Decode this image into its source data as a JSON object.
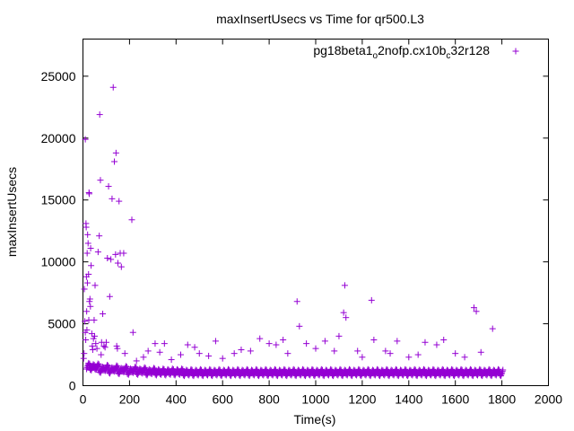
{
  "chart_data": {
    "type": "scatter",
    "title": "maxInsertUsecs vs Time for qr500.L3",
    "xlabel": "Time(s)",
    "ylabel": "maxInsertUsecs",
    "xlim": [
      0,
      2000
    ],
    "ylim": [
      0,
      28000
    ],
    "xticks": [
      0,
      200,
      400,
      600,
      800,
      1000,
      1200,
      1400,
      1600,
      1800,
      2000
    ],
    "yticks": [
      0,
      5000,
      10000,
      15000,
      20000,
      25000
    ],
    "legend": {
      "placement": "top-right",
      "label_main": "pg18beta1",
      "label_sub1": "o",
      "label_mid": "2nofp.cx10b",
      "label_sub2": "c",
      "label_tail": "32r128"
    },
    "grid": false,
    "marker": "+",
    "series": [
      {
        "name": "pg18beta1_o2nofp.cx10b_c32r128",
        "color": "#9400d3",
        "points": [
          [
            3,
            2200
          ],
          [
            5,
            2600
          ],
          [
            6,
            7800
          ],
          [
            8,
            5200
          ],
          [
            10,
            4300
          ],
          [
            10,
            19900
          ],
          [
            12,
            3700
          ],
          [
            13,
            13100
          ],
          [
            14,
            12800
          ],
          [
            15,
            8800
          ],
          [
            16,
            6000
          ],
          [
            17,
            4500
          ],
          [
            18,
            10700
          ],
          [
            19,
            8300
          ],
          [
            20,
            12200
          ],
          [
            22,
            11500
          ],
          [
            24,
            9000
          ],
          [
            25,
            5300
          ],
          [
            26,
            15600
          ],
          [
            27,
            15500
          ],
          [
            28,
            6800
          ],
          [
            30,
            7000
          ],
          [
            32,
            6400
          ],
          [
            33,
            11100
          ],
          [
            35,
            9700
          ],
          [
            38,
            4200
          ],
          [
            40,
            3200
          ],
          [
            42,
            2900
          ],
          [
            45,
            3800
          ],
          [
            48,
            5300
          ],
          [
            50,
            4000
          ],
          [
            52,
            8100
          ],
          [
            55,
            3400
          ],
          [
            60,
            3000
          ],
          [
            65,
            10800
          ],
          [
            70,
            12100
          ],
          [
            72,
            21900
          ],
          [
            75,
            16600
          ],
          [
            78,
            2500
          ],
          [
            80,
            3500
          ],
          [
            85,
            5800
          ],
          [
            90,
            3200
          ],
          [
            95,
            3100
          ],
          [
            100,
            3500
          ],
          [
            105,
            10300
          ],
          [
            110,
            16100
          ],
          [
            115,
            7200
          ],
          [
            120,
            10200
          ],
          [
            125,
            15100
          ],
          [
            130,
            24100
          ],
          [
            135,
            18100
          ],
          [
            140,
            10600
          ],
          [
            142,
            18800
          ],
          [
            145,
            3200
          ],
          [
            148,
            3000
          ],
          [
            150,
            9900
          ],
          [
            155,
            14900
          ],
          [
            160,
            10700
          ],
          [
            165,
            9600
          ],
          [
            175,
            10700
          ],
          [
            180,
            2600
          ],
          [
            210,
            13400
          ],
          [
            215,
            4300
          ],
          [
            230,
            2000
          ],
          [
            260,
            2300
          ],
          [
            280,
            2800
          ],
          [
            310,
            3400
          ],
          [
            330,
            2700
          ],
          [
            350,
            3400
          ],
          [
            380,
            2100
          ],
          [
            420,
            2500
          ],
          [
            450,
            3300
          ],
          [
            480,
            3100
          ],
          [
            500,
            2600
          ],
          [
            540,
            2400
          ],
          [
            570,
            3600
          ],
          [
            600,
            2200
          ],
          [
            650,
            2600
          ],
          [
            680,
            2900
          ],
          [
            720,
            2800
          ],
          [
            760,
            3800
          ],
          [
            800,
            3400
          ],
          [
            830,
            3300
          ],
          [
            860,
            3700
          ],
          [
            880,
            2600
          ],
          [
            920,
            6800
          ],
          [
            930,
            4800
          ],
          [
            960,
            3400
          ],
          [
            1000,
            3000
          ],
          [
            1040,
            3600
          ],
          [
            1080,
            2800
          ],
          [
            1100,
            4000
          ],
          [
            1120,
            5900
          ],
          [
            1125,
            8100
          ],
          [
            1130,
            5500
          ],
          [
            1180,
            2800
          ],
          [
            1200,
            2300
          ],
          [
            1240,
            6900
          ],
          [
            1250,
            3700
          ],
          [
            1300,
            2800
          ],
          [
            1320,
            2600
          ],
          [
            1350,
            3600
          ],
          [
            1400,
            2300
          ],
          [
            1440,
            2500
          ],
          [
            1470,
            3500
          ],
          [
            1520,
            3300
          ],
          [
            1550,
            3700
          ],
          [
            1600,
            2600
          ],
          [
            1640,
            2300
          ],
          [
            1680,
            6300
          ],
          [
            1690,
            6000
          ],
          [
            1710,
            2700
          ],
          [
            1760,
            4600
          ]
        ],
        "baseline": [
          [
            20,
            1700
          ],
          [
            40,
            1600
          ],
          [
            60,
            1650
          ],
          [
            80,
            1400
          ],
          [
            100,
            1550
          ],
          [
            120,
            1350
          ],
          [
            140,
            1500
          ],
          [
            160,
            1300
          ],
          [
            180,
            1450
          ],
          [
            200,
            1250
          ],
          [
            220,
            1400
          ],
          [
            240,
            1250
          ],
          [
            260,
            1350
          ],
          [
            280,
            1200
          ],
          [
            300,
            1300
          ],
          [
            320,
            1200
          ],
          [
            340,
            1250
          ],
          [
            360,
            1200
          ],
          [
            380,
            1250
          ],
          [
            400,
            1200
          ],
          [
            420,
            1250
          ],
          [
            440,
            1150
          ],
          [
            460,
            1200
          ],
          [
            480,
            1150
          ],
          [
            500,
            1200
          ],
          [
            520,
            1150
          ],
          [
            540,
            1200
          ],
          [
            560,
            1150
          ],
          [
            580,
            1200
          ],
          [
            600,
            1150
          ],
          [
            620,
            1200
          ],
          [
            640,
            1150
          ],
          [
            660,
            1200
          ],
          [
            680,
            1150
          ],
          [
            700,
            1200
          ],
          [
            720,
            1150
          ],
          [
            740,
            1200
          ],
          [
            760,
            1150
          ],
          [
            780,
            1200
          ],
          [
            800,
            1150
          ],
          [
            820,
            1200
          ],
          [
            840,
            1150
          ],
          [
            860,
            1200
          ],
          [
            880,
            1150
          ],
          [
            900,
            1200
          ],
          [
            920,
            1150
          ],
          [
            940,
            1200
          ],
          [
            960,
            1150
          ],
          [
            980,
            1200
          ],
          [
            1000,
            1150
          ],
          [
            1020,
            1200
          ],
          [
            1040,
            1150
          ],
          [
            1060,
            1200
          ],
          [
            1080,
            1150
          ],
          [
            1100,
            1200
          ],
          [
            1120,
            1150
          ],
          [
            1140,
            1200
          ],
          [
            1160,
            1150
          ],
          [
            1180,
            1200
          ],
          [
            1200,
            1150
          ],
          [
            1220,
            1200
          ],
          [
            1240,
            1150
          ],
          [
            1260,
            1200
          ],
          [
            1280,
            1150
          ],
          [
            1300,
            1200
          ],
          [
            1320,
            1150
          ],
          [
            1340,
            1200
          ],
          [
            1360,
            1150
          ],
          [
            1380,
            1200
          ],
          [
            1400,
            1150
          ],
          [
            1420,
            1200
          ],
          [
            1440,
            1150
          ],
          [
            1460,
            1200
          ],
          [
            1480,
            1150
          ],
          [
            1500,
            1200
          ],
          [
            1520,
            1150
          ],
          [
            1540,
            1200
          ],
          [
            1560,
            1150
          ],
          [
            1580,
            1200
          ],
          [
            1600,
            1150
          ],
          [
            1620,
            1200
          ],
          [
            1640,
            1150
          ],
          [
            1660,
            1200
          ],
          [
            1680,
            1150
          ],
          [
            1700,
            1200
          ],
          [
            1720,
            1150
          ],
          [
            1740,
            1200
          ],
          [
            1760,
            1150
          ],
          [
            1780,
            1200
          ],
          [
            1800,
            1150
          ]
        ]
      }
    ]
  }
}
